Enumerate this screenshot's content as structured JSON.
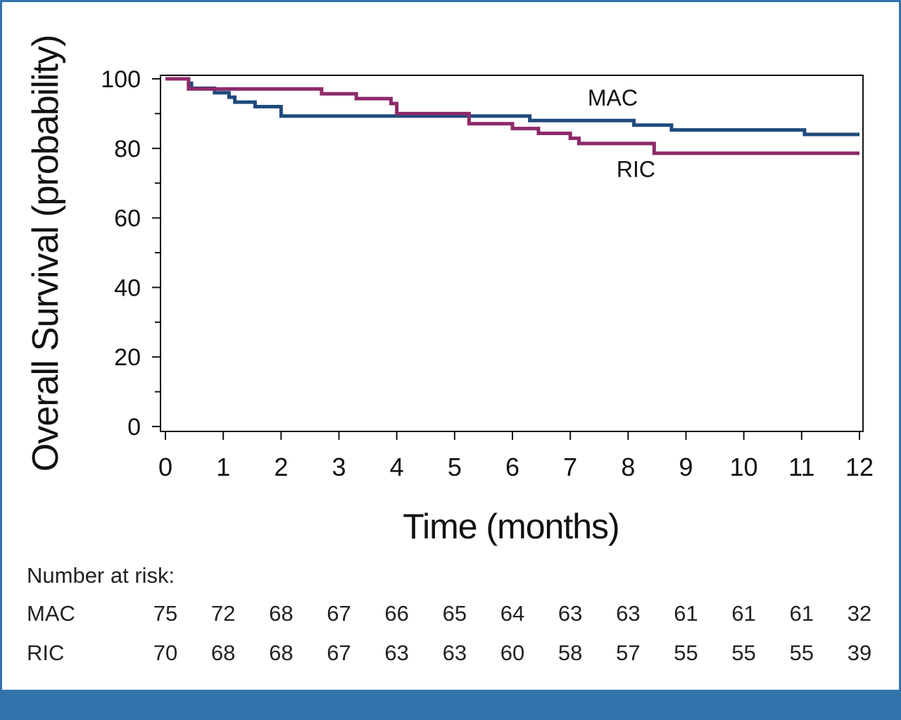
{
  "chart_data": {
    "type": "line",
    "ylabel": "Overall Survival (probability)",
    "xlabel": "Time (months)",
    "xlim": [
      0,
      12
    ],
    "ylim": [
      0,
      100
    ],
    "x_ticks": [
      "0",
      "1",
      "2",
      "3",
      "4",
      "5",
      "6",
      "7",
      "8",
      "9",
      "10",
      "11",
      "12"
    ],
    "y_ticks": [
      "0",
      "20",
      "40",
      "60",
      "80",
      "100"
    ],
    "grid": false,
    "series": [
      {
        "name": "MAC",
        "color": "#1f4a7c",
        "step_points": [
          [
            0,
            100
          ],
          [
            0.4,
            98.7
          ],
          [
            0.45,
            97.3
          ],
          [
            0.85,
            96
          ],
          [
            1.1,
            94.7
          ],
          [
            1.2,
            93.3
          ],
          [
            1.55,
            92
          ],
          [
            2.0,
            89.3
          ],
          [
            6.3,
            88
          ],
          [
            8.1,
            86.7
          ],
          [
            8.75,
            85.3
          ],
          [
            11.05,
            84
          ],
          [
            12,
            84
          ]
        ]
      },
      {
        "name": "RIC",
        "color": "#8e2a6b",
        "step_points": [
          [
            0,
            100
          ],
          [
            0.4,
            97.1
          ],
          [
            2.7,
            95.7
          ],
          [
            3.3,
            94.3
          ],
          [
            3.9,
            92.9
          ],
          [
            4.0,
            90
          ],
          [
            5.25,
            87.1
          ],
          [
            6.0,
            85.7
          ],
          [
            6.45,
            84.3
          ],
          [
            7.0,
            82.9
          ],
          [
            7.15,
            81.4
          ],
          [
            8.45,
            78.6
          ],
          [
            12,
            78.6
          ]
        ]
      }
    ],
    "series_label_positions": {
      "MAC": [
        7.3,
        94.5
      ],
      "RIC": [
        7.8,
        74
      ]
    }
  },
  "risk_table": {
    "title": "Number at risk:",
    "rows": [
      {
        "label": "MAC",
        "values": [
          "75",
          "72",
          "68",
          "67",
          "66",
          "65",
          "64",
          "63",
          "63",
          "61",
          "61",
          "61",
          "32"
        ]
      },
      {
        "label": "RIC",
        "values": [
          "70",
          "68",
          "68",
          "67",
          "63",
          "63",
          "60",
          "58",
          "57",
          "55",
          "55",
          "55",
          "39"
        ]
      }
    ]
  }
}
